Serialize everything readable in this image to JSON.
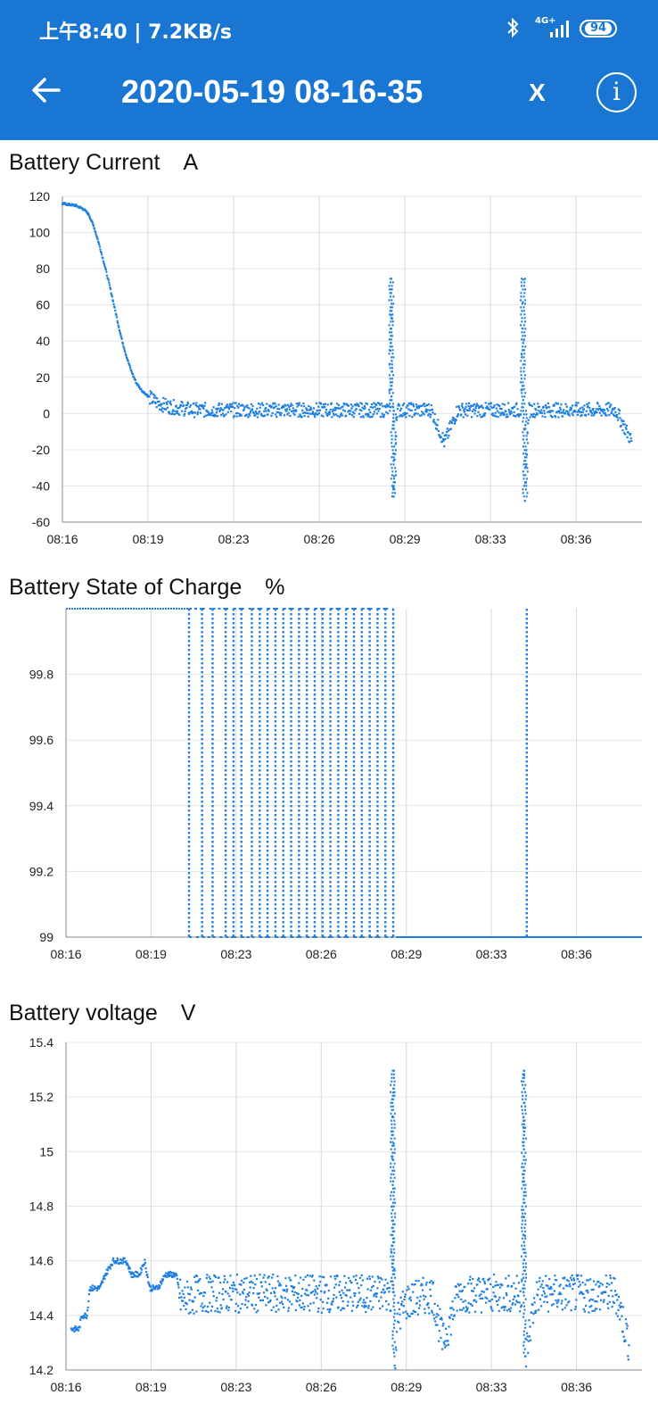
{
  "status_bar": {
    "time": "上午8:40 | 7.2KB/s",
    "network": "4G+",
    "battery": "94"
  },
  "app_bar": {
    "title": "2020-05-19 08-16-35",
    "close_label": "X",
    "info_label": "i"
  },
  "colors": {
    "accent": "#1976D2",
    "series": "#1E7FE0"
  },
  "chart_data": [
    {
      "type": "scatter",
      "title": "Battery Current",
      "unit": "A",
      "x_tick_labels": [
        "08:16",
        "08:19",
        "08:23",
        "08:26",
        "08:29",
        "08:33",
        "08:36"
      ],
      "x_tick_values": [
        0,
        3.25,
        6.5,
        9.75,
        13,
        16.25,
        19.5
      ],
      "y_ticks": [
        120,
        100,
        80,
        60,
        40,
        20,
        0,
        -20,
        -40,
        -60
      ],
      "ylim": [
        -60,
        120
      ],
      "xlim": [
        0,
        22
      ],
      "grid": true,
      "x_unit": "minutes after 08:16",
      "series": [
        {
          "values": [
            [
              0,
              116
            ],
            [
              0.5,
              115
            ],
            [
              0.8,
              113
            ],
            [
              1.0,
              110
            ],
            [
              1.2,
              103
            ],
            [
              1.4,
              93
            ],
            [
              1.6,
              82
            ],
            [
              1.8,
              70
            ],
            [
              2.0,
              57
            ],
            [
              2.2,
              44
            ],
            [
              2.4,
              33
            ],
            [
              2.6,
              24
            ],
            [
              2.8,
              17
            ],
            [
              3.0,
              13
            ],
            [
              3.3,
              9
            ],
            [
              3.6,
              6
            ],
            [
              4.0,
              4
            ],
            [
              4.5,
              3
            ],
            [
              5,
              2
            ],
            [
              6,
              2
            ],
            [
              7,
              2
            ],
            [
              8,
              2
            ],
            [
              9,
              2
            ],
            [
              10,
              2
            ],
            [
              11,
              2
            ],
            [
              12,
              2
            ],
            [
              12.4,
              2
            ],
            [
              12.5,
              75
            ],
            [
              12.55,
              -47
            ],
            [
              12.7,
              2
            ],
            [
              13,
              2
            ],
            [
              14,
              2
            ],
            [
              14.5,
              -16
            ],
            [
              15,
              2
            ],
            [
              16,
              2
            ],
            [
              17,
              2
            ],
            [
              17.4,
              2
            ],
            [
              17.5,
              75
            ],
            [
              17.55,
              -46
            ],
            [
              17.7,
              2
            ],
            [
              18,
              2
            ],
            [
              19,
              2
            ],
            [
              20,
              2
            ],
            [
              21,
              2
            ],
            [
              21.6,
              -15
            ]
          ],
          "noise": 4
        }
      ]
    },
    {
      "type": "scatter",
      "title": "Battery State of Charge",
      "unit": "%",
      "x_tick_labels": [
        "08:16",
        "08:19",
        "08:23",
        "08:26",
        "08:29",
        "08:33",
        "08:36"
      ],
      "x_tick_values": [
        0,
        3.25,
        6.5,
        9.75,
        13,
        16.25,
        19.5
      ],
      "y_ticks": [
        99.8,
        99.6,
        99.4,
        99.2,
        99
      ],
      "ylim": [
        99,
        100
      ],
      "xlim": [
        0,
        22
      ],
      "grid": true,
      "series": [
        {
          "high": 100,
          "low": 99,
          "high_until": 4.7,
          "toggles": [
            4.7,
            5.2,
            5.6,
            6.1,
            6.4,
            6.7,
            7.1,
            7.4,
            7.7,
            8.0,
            8.3,
            8.6,
            8.9,
            9.2,
            9.5,
            9.8,
            10.1,
            10.4,
            10.7,
            11.0,
            11.3,
            11.6,
            11.9,
            12.2,
            12.5
          ],
          "low_after": 12.6,
          "spike_at": 17.6
        }
      ]
    },
    {
      "type": "scatter",
      "title": "Battery voltage",
      "unit": "V",
      "x_tick_labels": [
        "08:16",
        "08:19",
        "08:23",
        "08:26",
        "08:29",
        "08:33",
        "08:36"
      ],
      "x_tick_values": [
        0,
        3.25,
        6.5,
        9.75,
        13,
        16.25,
        19.5
      ],
      "y_ticks": [
        15.4,
        15.2,
        15,
        14.8,
        14.6,
        14.4,
        14.2
      ],
      "ylim": [
        14.2,
        15.4
      ],
      "xlim": [
        0,
        22
      ],
      "grid": true,
      "series": [
        {
          "values": [
            [
              0.2,
              14.35
            ],
            [
              0.5,
              14.35
            ],
            [
              0.6,
              14.4
            ],
            [
              0.8,
              14.4
            ],
            [
              0.9,
              14.5
            ],
            [
              1.3,
              14.5
            ],
            [
              1.5,
              14.55
            ],
            [
              1.8,
              14.6
            ],
            [
              2.0,
              14.6
            ],
            [
              2.3,
              14.6
            ],
            [
              2.5,
              14.55
            ],
            [
              2.8,
              14.55
            ],
            [
              3.0,
              14.6
            ],
            [
              3.2,
              14.5
            ],
            [
              3.5,
              14.5
            ],
            [
              3.8,
              14.55
            ],
            [
              4.2,
              14.55
            ],
            [
              4.4,
              14.45
            ],
            [
              5,
              14.48
            ],
            [
              6,
              14.48
            ],
            [
              7,
              14.48
            ],
            [
              8,
              14.48
            ],
            [
              9,
              14.48
            ],
            [
              10,
              14.48
            ],
            [
              11,
              14.48
            ],
            [
              12,
              14.48
            ],
            [
              12.4,
              14.48
            ],
            [
              12.5,
              15.3
            ],
            [
              12.55,
              14.25
            ],
            [
              12.7,
              14.4
            ],
            [
              13,
              14.45
            ],
            [
              14,
              14.48
            ],
            [
              14.4,
              14.3
            ],
            [
              15,
              14.48
            ],
            [
              16,
              14.48
            ],
            [
              17,
              14.48
            ],
            [
              17.4,
              14.48
            ],
            [
              17.5,
              15.3
            ],
            [
              17.55,
              14.25
            ],
            [
              17.8,
              14.4
            ],
            [
              18,
              14.48
            ],
            [
              19,
              14.48
            ],
            [
              20,
              14.48
            ],
            [
              21,
              14.48
            ],
            [
              21.5,
              14.3
            ]
          ],
          "noise": 0.07
        }
      ]
    }
  ]
}
